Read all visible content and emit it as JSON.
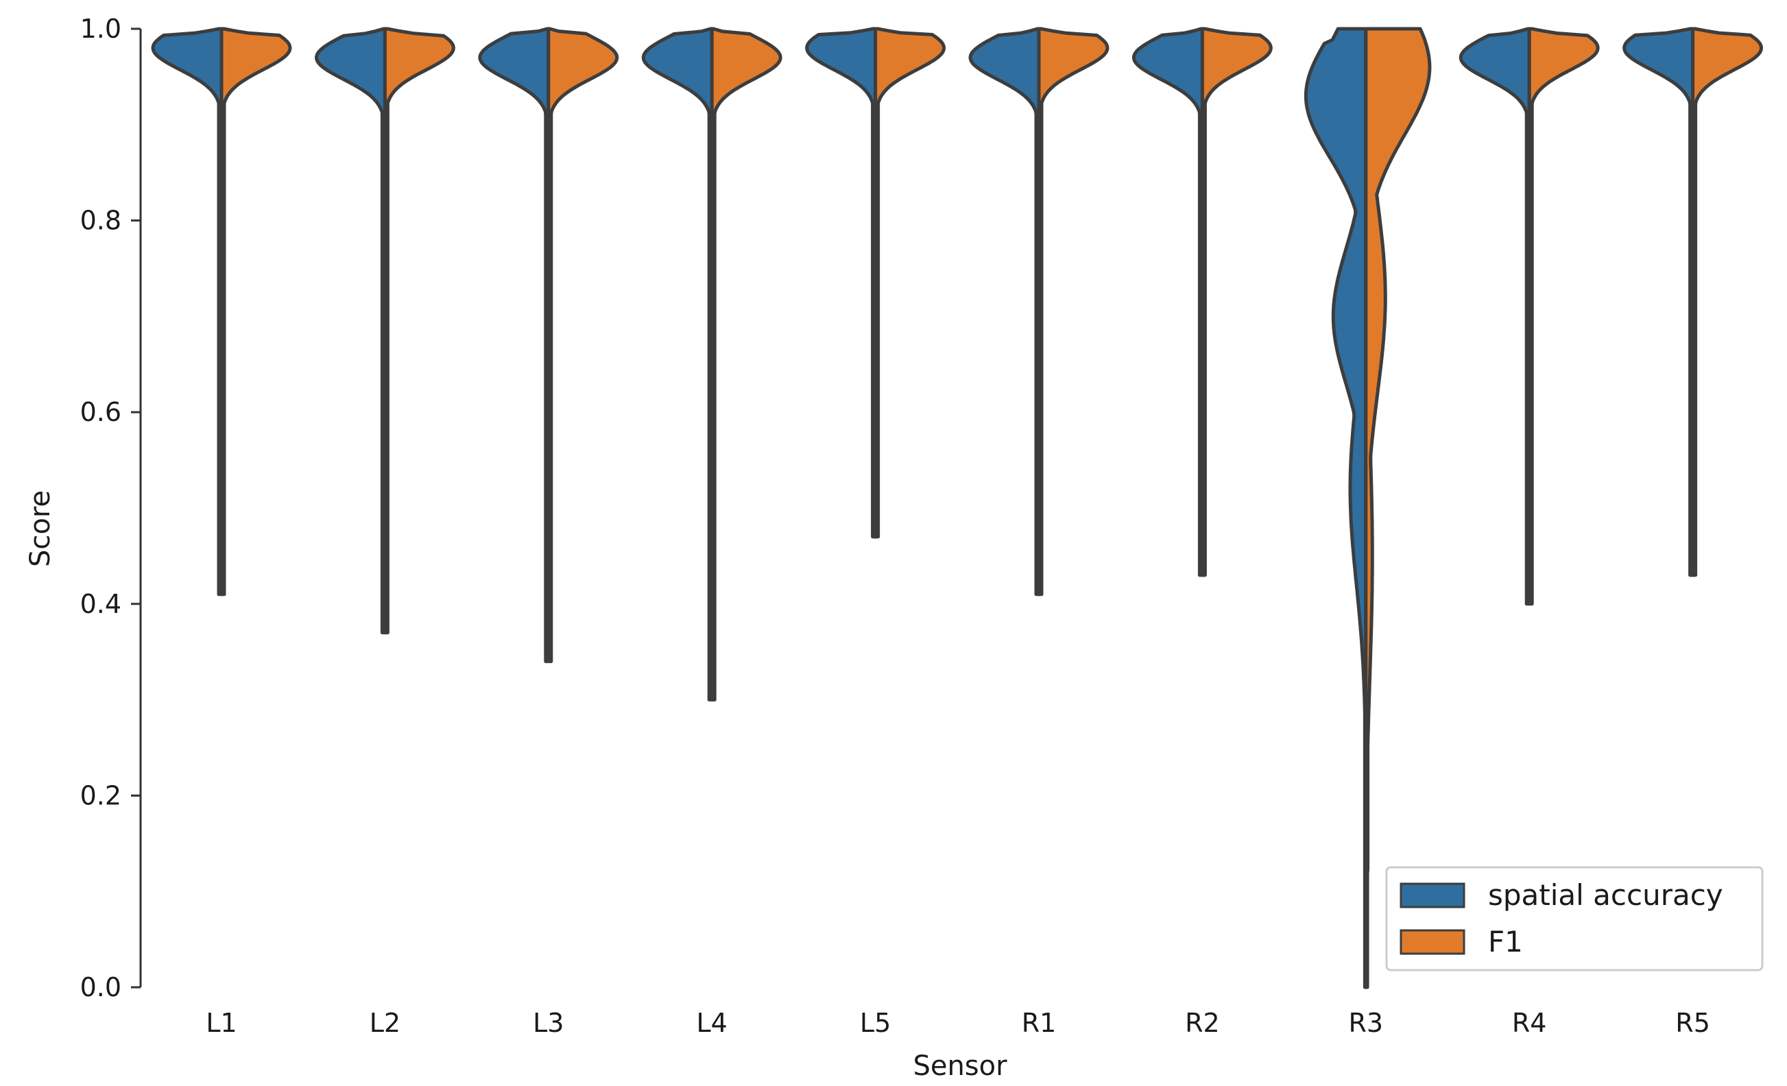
{
  "chart_data": {
    "type": "violin",
    "title": "",
    "xlabel": "Sensor",
    "ylabel": "Score",
    "ylim": [
      0.0,
      1.0
    ],
    "yticks": [
      "0.0",
      "0.2",
      "0.4",
      "0.6",
      "0.8",
      "1.0"
    ],
    "categories": [
      "L1",
      "L2",
      "L3",
      "L4",
      "L5",
      "R1",
      "R2",
      "R3",
      "R4",
      "R5"
    ],
    "legend": {
      "position": "lower-right"
    },
    "series": [
      {
        "name": "spatial accuracy",
        "color": "#2f6e9f",
        "min": [
          0.41,
          0.37,
          0.34,
          0.3,
          0.47,
          0.41,
          0.43,
          0.0,
          0.4,
          0.43
        ],
        "median": [
          0.98,
          0.97,
          0.97,
          0.97,
          0.98,
          0.97,
          0.97,
          0.8,
          0.97,
          0.98
        ]
      },
      {
        "name": "F1",
        "color": "#e07b2c",
        "min": [
          0.41,
          0.37,
          0.34,
          0.3,
          0.47,
          0.41,
          0.43,
          0.0,
          0.4,
          0.43
        ],
        "median": [
          0.98,
          0.98,
          0.97,
          0.97,
          0.98,
          0.98,
          0.98,
          0.86,
          0.98,
          0.98
        ]
      }
    ]
  }
}
